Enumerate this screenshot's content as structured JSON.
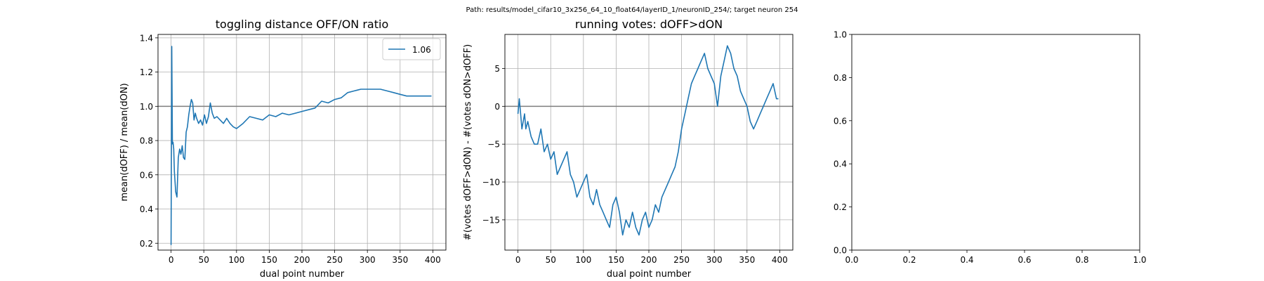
{
  "suptitle": "Path: results/model_cifar10_3x256_64_10_float64/layerID_1/neuronID_254/; target neuron 254",
  "chart_data": [
    {
      "type": "line",
      "title": "toggling distance OFF/ON ratio",
      "xlabel": "dual point number",
      "ylabel": "mean(dOFF) / mean(dON)",
      "xlim": [
        -20,
        420
      ],
      "ylim": [
        0.16,
        1.42
      ],
      "xticks": [
        "0",
        "50",
        "100",
        "150",
        "200",
        "250",
        "300",
        "350",
        "400"
      ],
      "yticks": [
        "0.2",
        "0.4",
        "0.6",
        "0.8",
        "1.0",
        "1.2",
        "1.4"
      ],
      "grid": true,
      "legend": {
        "position": "top-right",
        "entries": [
          "1.06"
        ]
      },
      "reference_line": 1.0,
      "series": [
        {
          "name": "1.06",
          "color": "#1f77b4",
          "x": [
            0,
            1,
            2,
            3,
            4,
            5,
            7,
            9,
            11,
            13,
            15,
            17,
            19,
            21,
            23,
            25,
            27,
            29,
            31,
            33,
            35,
            37,
            39,
            42,
            45,
            48,
            51,
            54,
            57,
            60,
            63,
            66,
            70,
            75,
            80,
            85,
            90,
            95,
            100,
            110,
            120,
            130,
            140,
            150,
            160,
            170,
            180,
            190,
            200,
            210,
            220,
            230,
            240,
            250,
            260,
            270,
            280,
            290,
            300,
            310,
            320,
            330,
            340,
            350,
            360,
            370,
            380,
            390,
            398
          ],
          "y": [
            0.19,
            1.35,
            0.78,
            0.79,
            0.75,
            0.62,
            0.5,
            0.47,
            0.7,
            0.75,
            0.72,
            0.77,
            0.7,
            0.69,
            0.85,
            0.88,
            0.95,
            1.0,
            1.04,
            1.02,
            0.92,
            0.96,
            0.93,
            0.9,
            0.92,
            0.89,
            0.95,
            0.9,
            0.94,
            1.02,
            0.96,
            0.93,
            0.94,
            0.92,
            0.9,
            0.93,
            0.9,
            0.88,
            0.87,
            0.9,
            0.94,
            0.93,
            0.92,
            0.95,
            0.94,
            0.96,
            0.95,
            0.96,
            0.97,
            0.98,
            0.99,
            1.03,
            1.02,
            1.04,
            1.05,
            1.08,
            1.09,
            1.1,
            1.1,
            1.1,
            1.1,
            1.09,
            1.08,
            1.07,
            1.06,
            1.06,
            1.06,
            1.06,
            1.06
          ]
        }
      ]
    },
    {
      "type": "line",
      "title": "running votes: dOFF>dON",
      "xlabel": "dual point number",
      "ylabel": "#(votes dOFF>dON) - #(votes dON>dOFF)",
      "xlim": [
        -20,
        420
      ],
      "ylim": [
        -19,
        9.5
      ],
      "xticks": [
        "0",
        "50",
        "100",
        "150",
        "200",
        "250",
        "300",
        "350",
        "400"
      ],
      "yticks": [
        "−15",
        "−10",
        "−5",
        "0",
        "5"
      ],
      "grid": true,
      "reference_line": 0,
      "series": [
        {
          "color": "#1f77b4",
          "x": [
            0,
            2,
            4,
            6,
            8,
            10,
            12,
            15,
            20,
            25,
            30,
            35,
            40,
            45,
            50,
            55,
            60,
            65,
            70,
            75,
            80,
            85,
            90,
            95,
            100,
            105,
            110,
            115,
            120,
            125,
            130,
            135,
            140,
            145,
            150,
            155,
            160,
            165,
            170,
            175,
            180,
            185,
            190,
            195,
            200,
            205,
            210,
            215,
            220,
            225,
            230,
            235,
            240,
            245,
            250,
            255,
            260,
            265,
            270,
            275,
            280,
            285,
            290,
            295,
            300,
            305,
            310,
            315,
            320,
            325,
            330,
            335,
            340,
            345,
            350,
            355,
            360,
            365,
            370,
            375,
            380,
            385,
            390,
            395,
            398
          ],
          "y": [
            -1,
            1,
            -1,
            -3,
            -2,
            -1,
            -3,
            -2,
            -4,
            -5,
            -5,
            -3,
            -6,
            -5,
            -7,
            -6,
            -9,
            -8,
            -7,
            -6,
            -9,
            -10,
            -12,
            -11,
            -10,
            -9,
            -12,
            -13,
            -11,
            -13,
            -14,
            -15,
            -16,
            -13,
            -12,
            -14,
            -17,
            -15,
            -16,
            -14,
            -16,
            -17,
            -15,
            -14,
            -16,
            -15,
            -13,
            -14,
            -12,
            -11,
            -10,
            -9,
            -8,
            -6,
            -3,
            -1,
            1,
            3,
            4,
            5,
            6,
            7,
            5,
            4,
            3,
            0,
            4,
            6,
            8,
            7,
            5,
            4,
            2,
            1,
            0,
            -2,
            -3,
            -2,
            -1,
            0,
            1,
            2,
            3,
            1,
            1
          ]
        }
      ]
    },
    {
      "type": "line",
      "title": "",
      "xlabel": "",
      "ylabel": "",
      "xlim": [
        0,
        1
      ],
      "ylim": [
        0,
        1
      ],
      "xticks": [
        "0.0",
        "0.2",
        "0.4",
        "0.6",
        "0.8",
        "1.0"
      ],
      "yticks": [
        "0.0",
        "0.2",
        "0.4",
        "0.6",
        "0.8",
        "1.0"
      ],
      "grid": false,
      "series": []
    }
  ]
}
